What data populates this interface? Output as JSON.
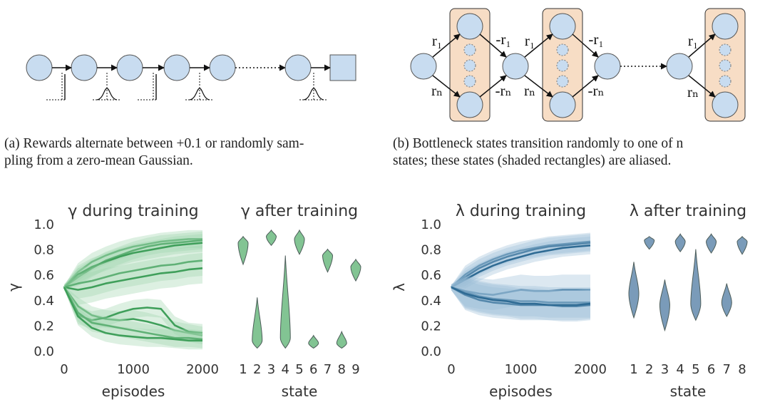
{
  "captions": {
    "a_line1": "(a) Rewards alternate between +0.1 or randomly sam-",
    "a_line2": "pling from a zero-mean Gaussian.",
    "b_line1": "(b) Bottleneck states transition randomly to one of n",
    "b_line2": "states; these states (shaded rectangles) are aliased."
  },
  "diagram_b_labels": {
    "r1": "r₁",
    "rn": "rₙ",
    "neg_r1": "-r₁",
    "neg_rn": "-rₙ"
  },
  "colors": {
    "node_fill": "#c8dcf0",
    "bottleneck_fill": "#f7ddc5",
    "green": "#3f9f5a",
    "green_light": "#9fd3ab",
    "blue": "#2f6b94",
    "blue_light": "#9cbdd6",
    "violin_green": "#82c493",
    "violin_blue": "#7a9bb9"
  },
  "chart_data": [
    {
      "type": "line",
      "title": "γ during training",
      "xlabel": "episodes",
      "ylabel": "γ",
      "xlim": [
        0,
        2000
      ],
      "ylim": [
        0.0,
        1.0
      ],
      "xticks": [
        "0",
        "1000",
        "2000"
      ],
      "yticks": [
        "0.0",
        "0.2",
        "0.4",
        "0.6",
        "0.8",
        "1.0"
      ],
      "grid": false,
      "x": [
        0,
        200,
        400,
        600,
        800,
        1000,
        1200,
        1400,
        1600,
        1800,
        2000
      ],
      "series": [
        {
          "values": [
            0.5,
            0.62,
            0.7,
            0.75,
            0.79,
            0.82,
            0.84,
            0.86,
            0.87,
            0.88,
            0.88
          ]
        },
        {
          "values": [
            0.5,
            0.58,
            0.65,
            0.71,
            0.75,
            0.79,
            0.82,
            0.84,
            0.85,
            0.86,
            0.87
          ]
        },
        {
          "values": [
            0.5,
            0.6,
            0.66,
            0.7,
            0.74,
            0.77,
            0.79,
            0.81,
            0.83,
            0.84,
            0.85
          ]
        },
        {
          "values": [
            0.5,
            0.53,
            0.55,
            0.58,
            0.61,
            0.63,
            0.65,
            0.67,
            0.68,
            0.7,
            0.71
          ]
        },
        {
          "values": [
            0.5,
            0.48,
            0.5,
            0.53,
            0.55,
            0.57,
            0.59,
            0.61,
            0.62,
            0.64,
            0.65
          ]
        },
        {
          "values": [
            0.5,
            0.35,
            0.28,
            0.25,
            0.24,
            0.25,
            0.23,
            0.2,
            0.16,
            0.14,
            0.12
          ]
        },
        {
          "values": [
            0.5,
            0.28,
            0.24,
            0.26,
            0.3,
            0.33,
            0.34,
            0.33,
            0.2,
            0.15,
            0.14
          ]
        },
        {
          "values": [
            0.5,
            0.3,
            0.22,
            0.2,
            0.18,
            0.16,
            0.14,
            0.12,
            0.1,
            0.1,
            0.09
          ]
        },
        {
          "values": [
            0.5,
            0.27,
            0.18,
            0.14,
            0.12,
            0.11,
            0.1,
            0.1,
            0.09,
            0.08,
            0.08
          ]
        }
      ]
    },
    {
      "type": "violin",
      "title": "γ after training",
      "xlabel": "state",
      "categories": [
        "1",
        "2",
        "3",
        "4",
        "5",
        "6",
        "7",
        "8",
        "9"
      ],
      "ylim": [
        0.0,
        1.0
      ],
      "distributions": [
        {
          "min": 0.68,
          "max": 0.9,
          "peak": 0.85
        },
        {
          "min": 0.02,
          "max": 0.42,
          "peak": 0.08
        },
        {
          "min": 0.83,
          "max": 0.95,
          "peak": 0.9
        },
        {
          "min": 0.02,
          "max": 0.75,
          "peak": 0.1
        },
        {
          "min": 0.76,
          "max": 0.95,
          "peak": 0.88
        },
        {
          "min": 0.02,
          "max": 0.12,
          "peak": 0.06
        },
        {
          "min": 0.62,
          "max": 0.8,
          "peak": 0.75
        },
        {
          "min": 0.02,
          "max": 0.15,
          "peak": 0.06
        },
        {
          "min": 0.55,
          "max": 0.72,
          "peak": 0.66
        }
      ]
    },
    {
      "type": "line",
      "title": "λ during training",
      "xlabel": "episodes",
      "ylabel": "λ",
      "xlim": [
        0,
        2000
      ],
      "ylim": [
        0.0,
        1.0
      ],
      "xticks": [
        "0",
        "1000",
        "2000"
      ],
      "yticks": [
        "0.0",
        "0.2",
        "0.4",
        "0.6",
        "0.8",
        "1.0"
      ],
      "grid": false,
      "x": [
        0,
        200,
        400,
        600,
        800,
        1000,
        1200,
        1400,
        1600,
        1800,
        2000
      ],
      "series": [
        {
          "values": [
            0.5,
            0.6,
            0.67,
            0.72,
            0.76,
            0.79,
            0.81,
            0.83,
            0.84,
            0.85,
            0.86
          ]
        },
        {
          "values": [
            0.5,
            0.58,
            0.65,
            0.7,
            0.74,
            0.77,
            0.8,
            0.82,
            0.83,
            0.84,
            0.85
          ]
        },
        {
          "values": [
            0.5,
            0.56,
            0.62,
            0.67,
            0.71,
            0.74,
            0.77,
            0.79,
            0.81,
            0.82,
            0.83
          ]
        },
        {
          "values": [
            0.5,
            0.47,
            0.45,
            0.44,
            0.46,
            0.48,
            0.47,
            0.47,
            0.48,
            0.48,
            0.48
          ]
        },
        {
          "values": [
            0.5,
            0.46,
            0.43,
            0.41,
            0.4,
            0.39,
            0.39,
            0.38,
            0.38,
            0.38,
            0.38
          ]
        },
        {
          "values": [
            0.5,
            0.44,
            0.4,
            0.38,
            0.37,
            0.36,
            0.36,
            0.36,
            0.35,
            0.35,
            0.36
          ]
        },
        {
          "values": [
            0.5,
            0.45,
            0.42,
            0.4,
            0.39,
            0.37,
            0.37,
            0.36,
            0.36,
            0.36,
            0.37
          ]
        }
      ]
    },
    {
      "type": "violin",
      "title": "λ after training",
      "xlabel": "state",
      "categories": [
        "1",
        "2",
        "3",
        "4",
        "5",
        "6",
        "7",
        "8"
      ],
      "ylim": [
        0.0,
        1.0
      ],
      "distributions": [
        {
          "min": 0.26,
          "max": 0.7,
          "peak": 0.45
        },
        {
          "min": 0.8,
          "max": 0.9,
          "peak": 0.87
        },
        {
          "min": 0.16,
          "max": 0.56,
          "peak": 0.36
        },
        {
          "min": 0.78,
          "max": 0.92,
          "peak": 0.86
        },
        {
          "min": 0.24,
          "max": 0.8,
          "peak": 0.37
        },
        {
          "min": 0.77,
          "max": 0.92,
          "peak": 0.86
        },
        {
          "min": 0.27,
          "max": 0.53,
          "peak": 0.38
        },
        {
          "min": 0.76,
          "max": 0.9,
          "peak": 0.86
        }
      ]
    }
  ]
}
